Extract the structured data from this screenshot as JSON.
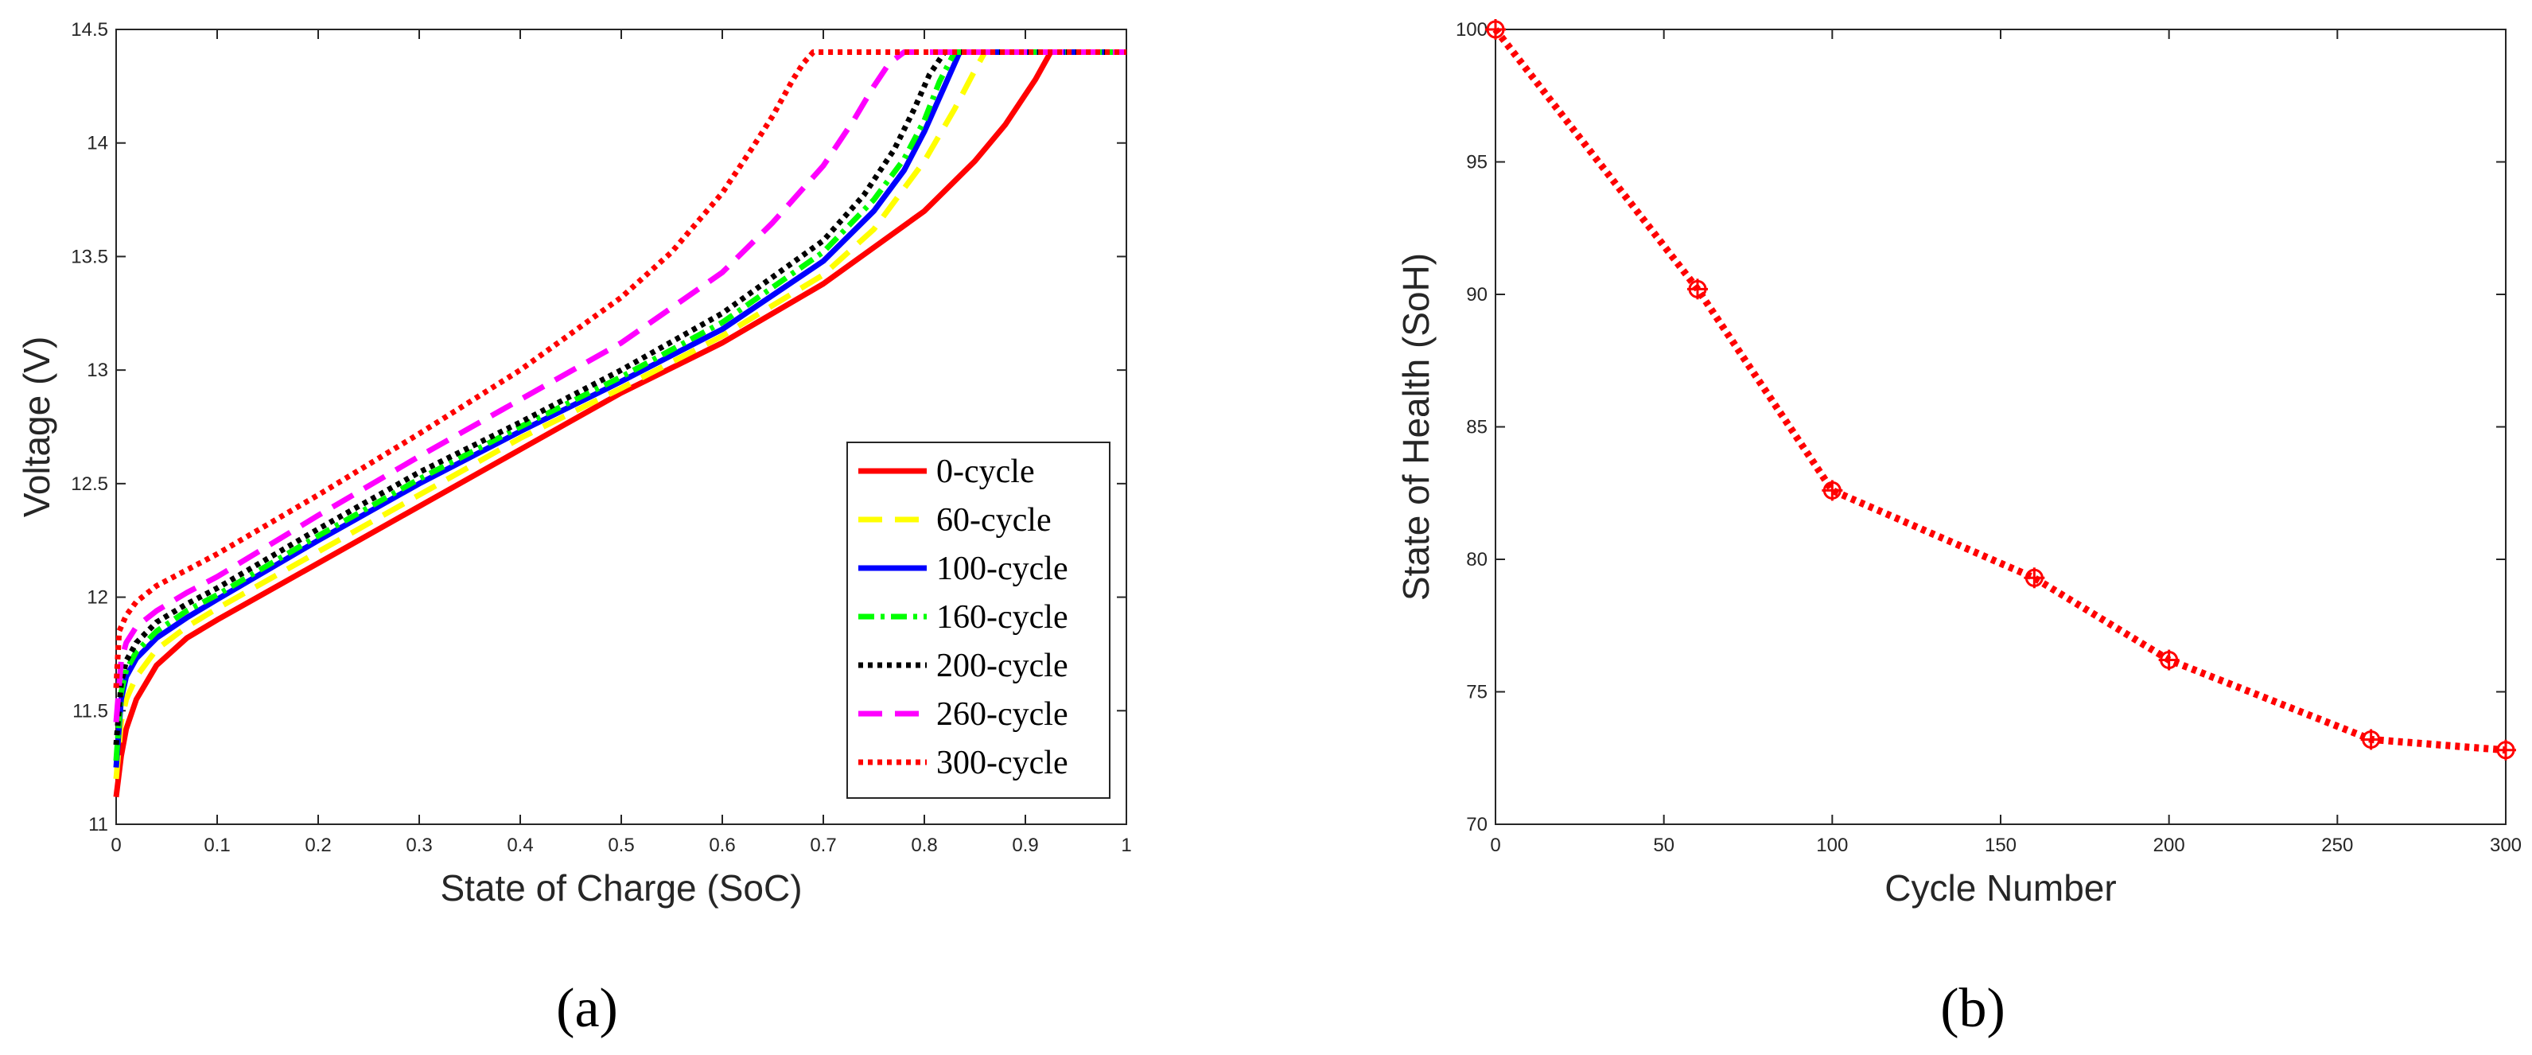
{
  "chart_data": [
    {
      "type": "line",
      "panel_label": "(a)",
      "xlabel": "State of Charge (SoC)",
      "ylabel": "Voltage (V)",
      "xlim": [
        0,
        1
      ],
      "ylim": [
        11,
        14.5
      ],
      "xticks": [
        0,
        0.1,
        0.2,
        0.3,
        0.4,
        0.5,
        0.6,
        0.7,
        0.8,
        0.9,
        1
      ],
      "yticks": [
        11,
        11.5,
        12,
        12.5,
        13,
        13.5,
        14,
        14.5
      ],
      "xtick_labels": [
        "0",
        "0.1",
        "0.2",
        "0.3",
        "0.4",
        "0.5",
        "0.6",
        "0.7",
        "0.8",
        "0.9",
        "1"
      ],
      "ytick_labels": [
        "11",
        "11.5",
        "12",
        "12.5",
        "13",
        "13.5",
        "14",
        "14.5"
      ],
      "grid": false,
      "legend_position": "bottom-right",
      "series": [
        {
          "name": "0-cycle",
          "color": "#ff0000",
          "dash": "solid",
          "x": [
            0,
            0.005,
            0.01,
            0.02,
            0.04,
            0.07,
            0.1,
            0.2,
            0.3,
            0.4,
            0.5,
            0.6,
            0.7,
            0.8,
            0.85,
            0.88,
            0.91,
            0.925,
            1.0
          ],
          "y": [
            11.12,
            11.3,
            11.42,
            11.55,
            11.7,
            11.82,
            11.9,
            12.15,
            12.4,
            12.65,
            12.9,
            13.12,
            13.38,
            13.7,
            13.92,
            14.08,
            14.28,
            14.4,
            14.4
          ]
        },
        {
          "name": "60-cycle",
          "color": "#ffff00",
          "dash": "dashed",
          "x": [
            0,
            0.005,
            0.01,
            0.02,
            0.04,
            0.07,
            0.1,
            0.2,
            0.3,
            0.4,
            0.5,
            0.6,
            0.7,
            0.75,
            0.8,
            0.83,
            0.85,
            0.86,
            1.0
          ],
          "y": [
            11.2,
            11.45,
            11.55,
            11.65,
            11.77,
            11.87,
            11.95,
            12.2,
            12.45,
            12.7,
            12.92,
            13.15,
            13.42,
            13.62,
            13.92,
            14.15,
            14.32,
            14.4,
            14.4
          ]
        },
        {
          "name": "100-cycle",
          "color": "#0000ff",
          "dash": "solid",
          "x": [
            0,
            0.005,
            0.01,
            0.02,
            0.04,
            0.07,
            0.1,
            0.2,
            0.3,
            0.4,
            0.5,
            0.6,
            0.7,
            0.75,
            0.78,
            0.8,
            0.82,
            0.835,
            1.0
          ],
          "y": [
            11.25,
            11.55,
            11.65,
            11.73,
            11.82,
            11.91,
            11.99,
            12.25,
            12.5,
            12.73,
            12.95,
            13.18,
            13.48,
            13.7,
            13.88,
            14.05,
            14.25,
            14.4,
            14.4
          ]
        },
        {
          "name": "160-cycle",
          "color": "#00ff00",
          "dash": "dashdot",
          "x": [
            0,
            0.005,
            0.01,
            0.02,
            0.04,
            0.07,
            0.1,
            0.2,
            0.3,
            0.4,
            0.5,
            0.6,
            0.7,
            0.75,
            0.78,
            0.8,
            0.815,
            0.83,
            1.0
          ],
          "y": [
            11.28,
            11.58,
            11.68,
            11.76,
            11.85,
            11.94,
            12.01,
            12.27,
            12.52,
            12.75,
            12.97,
            13.21,
            13.52,
            13.75,
            13.93,
            14.1,
            14.27,
            14.4,
            14.4
          ]
        },
        {
          "name": "200-cycle",
          "color": "#000000",
          "dash": "dotted",
          "x": [
            0,
            0.005,
            0.01,
            0.02,
            0.04,
            0.07,
            0.1,
            0.2,
            0.3,
            0.4,
            0.5,
            0.6,
            0.7,
            0.74,
            0.77,
            0.79,
            0.805,
            0.82,
            1.0
          ],
          "y": [
            11.35,
            11.62,
            11.72,
            11.8,
            11.89,
            11.97,
            12.04,
            12.3,
            12.55,
            12.77,
            13.0,
            13.25,
            13.57,
            13.77,
            13.97,
            14.15,
            14.3,
            14.4,
            14.4
          ]
        },
        {
          "name": "260-cycle",
          "color": "#ff00ff",
          "dash": "dashed",
          "x": [
            0,
            0.005,
            0.01,
            0.02,
            0.04,
            0.07,
            0.1,
            0.2,
            0.3,
            0.4,
            0.5,
            0.6,
            0.65,
            0.7,
            0.73,
            0.75,
            0.765,
            0.78,
            1.0
          ],
          "y": [
            11.45,
            11.72,
            11.8,
            11.87,
            11.94,
            12.02,
            12.09,
            12.36,
            12.62,
            12.87,
            13.12,
            13.43,
            13.65,
            13.9,
            14.1,
            14.25,
            14.35,
            14.4,
            14.4
          ]
        },
        {
          "name": "300-cycle",
          "color": "#ff0000",
          "dash": "dotted",
          "x": [
            0,
            0.003,
            0.01,
            0.02,
            0.04,
            0.07,
            0.1,
            0.2,
            0.3,
            0.4,
            0.5,
            0.55,
            0.6,
            0.63,
            0.65,
            0.67,
            0.68,
            0.69,
            1.0
          ],
          "y": [
            11.6,
            11.85,
            11.92,
            11.98,
            12.05,
            12.12,
            12.19,
            12.45,
            12.72,
            13.0,
            13.32,
            13.52,
            13.78,
            13.98,
            14.12,
            14.28,
            14.35,
            14.4,
            14.4
          ]
        }
      ]
    },
    {
      "type": "line",
      "panel_label": "(b)",
      "xlabel": "Cycle Number",
      "ylabel": "State of Health (SoH)",
      "xlim": [
        0,
        300
      ],
      "ylim": [
        70,
        100
      ],
      "xticks": [
        0,
        50,
        100,
        150,
        200,
        250,
        300
      ],
      "yticks": [
        70,
        75,
        80,
        85,
        90,
        95,
        100
      ],
      "xtick_labels": [
        "0",
        "50",
        "100",
        "150",
        "200",
        "250",
        "300"
      ],
      "ytick_labels": [
        "70",
        "75",
        "80",
        "85",
        "90",
        "95",
        "100"
      ],
      "grid": false,
      "series": [
        {
          "color": "#ff0000",
          "dash": "dotted",
          "marker": "circle-plus",
          "x": [
            0,
            60,
            100,
            160,
            200,
            260,
            300
          ],
          "y": [
            100,
            90.2,
            82.6,
            79.3,
            76.2,
            73.2,
            72.8
          ]
        }
      ]
    }
  ]
}
